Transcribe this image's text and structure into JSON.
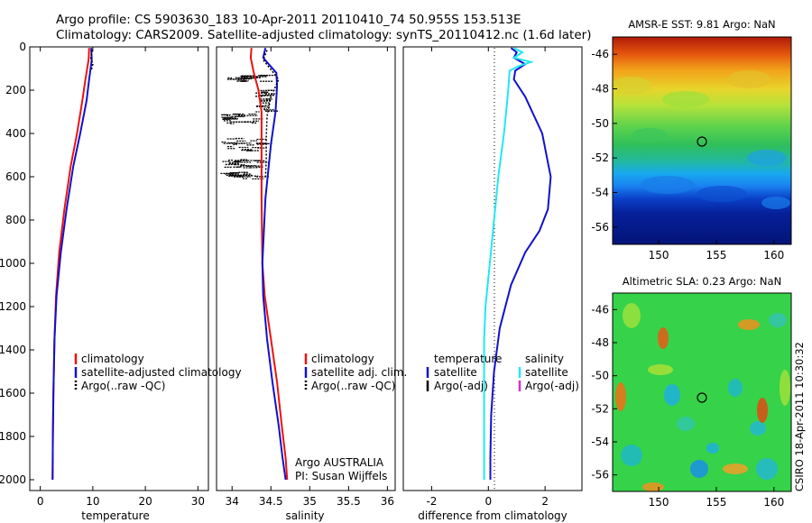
{
  "header": {
    "line1": "Argo profile: CS 5903630_183 10-Apr-2011 20110410_74 50.955S 153.513E",
    "line2": "Climatology: CARS2009. Satellite-adjusted climatology: synTS_20110412.nc (1.6d later)"
  },
  "colors": {
    "climatology": "#ee1111",
    "satellite": "#1111cc",
    "argo": "#000000",
    "sat_salinity": "#22e8ee",
    "argo_adj_salinity": "#cc33cc"
  },
  "chart_data": [
    {
      "type": "line",
      "xlabel": "temperature",
      "xlim": [
        -2,
        32
      ],
      "ylim": [
        2050,
        0
      ],
      "xticks": [
        0,
        10,
        20,
        30
      ],
      "yticks": [
        0,
        200,
        400,
        600,
        800,
        1000,
        1200,
        1400,
        1600,
        1800,
        2000
      ],
      "legend": [
        "climatology",
        "satellite-adjusted climatology",
        "Argo(..raw -QC)"
      ],
      "series": [
        {
          "name": "climatology",
          "color": "#ee1111",
          "x": [
            9.3,
            9.2,
            8.6,
            8.0,
            7.0,
            5.8,
            4.6,
            3.6,
            3.0,
            2.7,
            2.5,
            2.4,
            2.35
          ],
          "y": [
            5,
            60,
            150,
            250,
            400,
            550,
            750,
            950,
            1150,
            1350,
            1600,
            1800,
            2000
          ]
        },
        {
          "name": "satellite-adjusted climatology",
          "color": "#1111cc",
          "x": [
            9.7,
            9.8,
            9.3,
            8.8,
            7.6,
            6.3,
            5.0,
            3.9,
            3.1,
            2.7,
            2.5,
            2.4,
            2.35
          ],
          "y": [
            5,
            60,
            150,
            250,
            400,
            550,
            750,
            950,
            1150,
            1350,
            1600,
            1800,
            2000
          ]
        },
        {
          "name": "Argo(..raw -QC)",
          "color": "#000000",
          "x": [
            9.9,
            9.6,
            10.0,
            9.7
          ],
          "y": [
            15,
            50,
            80,
            110
          ]
        }
      ]
    },
    {
      "type": "line",
      "xlabel": "salinity",
      "xlim": [
        33.8,
        36.1
      ],
      "ylim": [
        2050,
        0
      ],
      "xticks": [
        34,
        34.5,
        35,
        35.5,
        36
      ],
      "legend": [
        "climatology",
        "satellite adj. clim.",
        "Argo(..raw -QC)"
      ],
      "annotation": [
        "Argo AUSTRALIA",
        "PI: Susan Wijffels"
      ],
      "series": [
        {
          "name": "climatology",
          "color": "#ee1111",
          "x": [
            34.25,
            34.24,
            34.28,
            34.34,
            34.38,
            34.38,
            34.38,
            34.39,
            34.42,
            34.5,
            34.58,
            34.64,
            34.69,
            34.71
          ],
          "y": [
            5,
            50,
            120,
            200,
            300,
            450,
            700,
            1000,
            1150,
            1350,
            1550,
            1750,
            1900,
            2000
          ]
        },
        {
          "name": "satellite adj. clim.",
          "color": "#1111cc",
          "x": [
            34.43,
            34.4,
            34.57,
            34.58,
            34.56,
            34.5,
            34.43,
            34.39,
            34.4,
            34.45,
            34.52,
            34.6,
            34.65,
            34.69
          ],
          "y": [
            5,
            50,
            120,
            180,
            300,
            450,
            700,
            1000,
            1150,
            1350,
            1550,
            1750,
            1900,
            2000
          ]
        },
        {
          "name": "Argo(..raw -QC)",
          "color": "#000000",
          "x": [
            34.45,
            34.4,
            34.6,
            34.5,
            34.45,
            34.44,
            34.44,
            34.43
          ],
          "y": [
            15,
            60,
            150,
            230,
            320,
            420,
            520,
            610
          ]
        }
      ]
    },
    {
      "type": "line",
      "xlabel": "difference from climatology",
      "xlim": [
        -3,
        3.3
      ],
      "ylim": [
        2050,
        0
      ],
      "xticks": [
        -2,
        0,
        2
      ],
      "legend": [
        "temperature",
        "satellite",
        "Argo(-adj)",
        "salinity",
        "satellite",
        "Argo(-adj)"
      ],
      "series": [
        {
          "name": "temperature satellite",
          "color": "#1111cc",
          "x": [
            0.8,
            1.0,
            0.9,
            1.3,
            0.95,
            0.9,
            1.3,
            1.9,
            2.2,
            2.1,
            1.8,
            1.3,
            0.8,
            0.4,
            0.2,
            0.1,
            0.07,
            0.07
          ],
          "y": [
            5,
            25,
            50,
            80,
            110,
            150,
            230,
            400,
            600,
            750,
            850,
            950,
            1100,
            1300,
            1500,
            1700,
            1900,
            2000
          ]
        },
        {
          "name": "salinity satellite",
          "color": "#22e8ee",
          "x": [
            0.9,
            1.2,
            0.9,
            1.5,
            1.05,
            0.75,
            0.7,
            0.55,
            0.35,
            0.2,
            0.05,
            -0.1,
            -0.15,
            -0.15,
            -0.15,
            -0.15,
            -0.15,
            -0.15,
            -0.15
          ],
          "y": [
            5,
            25,
            50,
            70,
            90,
            110,
            200,
            400,
            600,
            800,
            1000,
            1200,
            1350,
            1500,
            1600,
            1700,
            1800,
            1900,
            2000
          ]
        }
      ]
    },
    {
      "type": "heatmap",
      "title": "AMSR-E SST: 9.81 Argo: NaN",
      "xlim": [
        146,
        161.5
      ],
      "ylim": [
        -57,
        -45
      ],
      "xticks": [
        150,
        155,
        160
      ],
      "yticks": [
        -46,
        -48,
        -50,
        -52,
        -54,
        -56
      ],
      "marker": {
        "lon": 153.5,
        "lat": -50.95
      }
    },
    {
      "type": "heatmap",
      "title": "Altimetric SLA: 0.23 Argo: NaN",
      "xlim": [
        146,
        161.5
      ],
      "ylim": [
        -57,
        -45
      ],
      "xticks": [
        150,
        155,
        160
      ],
      "yticks": [
        -46,
        -48,
        -50,
        -52,
        -54,
        -56
      ],
      "marker": {
        "lon": 153.5,
        "lat": -50.95
      }
    }
  ],
  "footer": {
    "credit": "CSIRO 18-Apr-2011 10:30:32"
  }
}
